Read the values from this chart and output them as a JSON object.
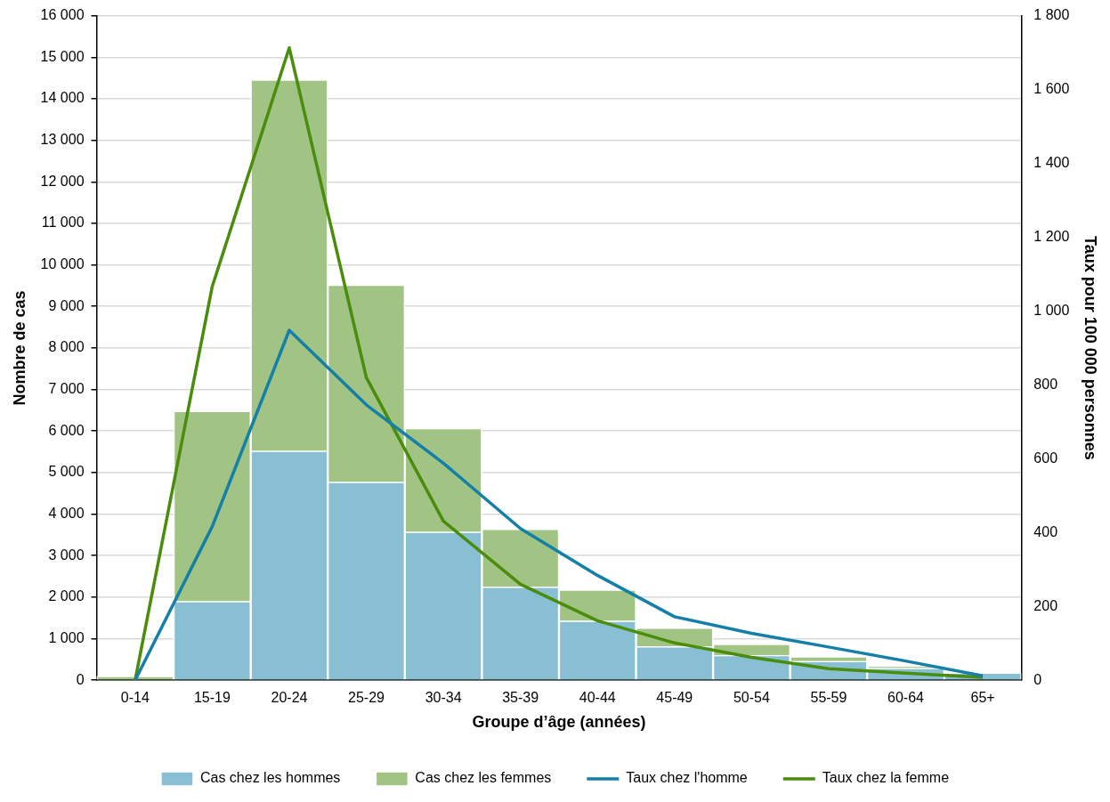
{
  "chart_data": {
    "type": "bar",
    "stacked": true,
    "xlabel": "Groupe d’âge (années)",
    "ylabel": "Nombre de cas",
    "y2label": "Taux pour 100 000 personnes",
    "categories": [
      "0-14",
      "15-19",
      "20-24",
      "25-29",
      "30-34",
      "35-39",
      "40-44",
      "45-49",
      "50-54",
      "55-59",
      "60-64",
      "65+"
    ],
    "series": [
      {
        "name": "Cas chez les hommes",
        "color": "#88bfd3",
        "values": [
          0,
          1900,
          5520,
          4770,
          3570,
          2250,
          1430,
          810,
          600,
          460,
          290,
          180
        ]
      },
      {
        "name": "Cas chez les femmes",
        "color": "#a1c383",
        "values": [
          100,
          4580,
          8940,
          4750,
          2500,
          1390,
          750,
          450,
          270,
          110,
          50,
          0
        ]
      },
      {
        "name": "Taux chez l'homme",
        "type": "line",
        "axis": "y2",
        "color": "#1480a8",
        "values": [
          0,
          416,
          948,
          746,
          588,
          411,
          284,
          172,
          127,
          90,
          52,
          12
        ]
      },
      {
        "name": "Taux chez la femme",
        "type": "line",
        "axis": "y2",
        "color": "#4a8c0c",
        "values": [
          0,
          1066,
          1713,
          820,
          431,
          260,
          161,
          101,
          62,
          31,
          19,
          8
        ]
      }
    ],
    "ylim": [
      0,
      16000
    ],
    "yticks": [
      0,
      {
        "value": 1000,
        "label": "1 000"
      },
      {
        "value": 2000,
        "label": "2 000"
      },
      {
        "value": 3000,
        "label": "3 000"
      },
      {
        "value": 4000,
        "label": "4 000"
      },
      {
        "value": 5000,
        "label": "5 000"
      },
      {
        "value": 6000,
        "label": "6 000"
      },
      {
        "value": 7000,
        "label": "7 000"
      },
      {
        "value": 8000,
        "label": "8 000"
      },
      {
        "value": 9000,
        "label": "9 000"
      },
      {
        "value": 10000,
        "label": "10 000"
      },
      {
        "value": 11000,
        "label": "11 000"
      },
      {
        "value": 12000,
        "label": "12 000"
      },
      {
        "value": 13000,
        "label": "13 000"
      },
      {
        "value": 14000,
        "label": "14 000"
      },
      {
        "value": 15000,
        "label": "15 000"
      },
      {
        "value": 16000,
        "label": "16 000"
      }
    ],
    "y2lim": [
      0,
      1800
    ],
    "y2ticks": [
      0,
      200,
      400,
      600,
      800,
      {
        "value": 1000,
        "label": "1 000"
      },
      {
        "value": 1200,
        "label": "1 200"
      },
      {
        "value": 1400,
        "label": "1 400"
      },
      {
        "value": 1600,
        "label": "1 600"
      },
      {
        "value": 1800,
        "label": "1 800"
      }
    ],
    "grid": "y",
    "legend": "bottom",
    "marker": "none",
    "line_style": "solid"
  }
}
